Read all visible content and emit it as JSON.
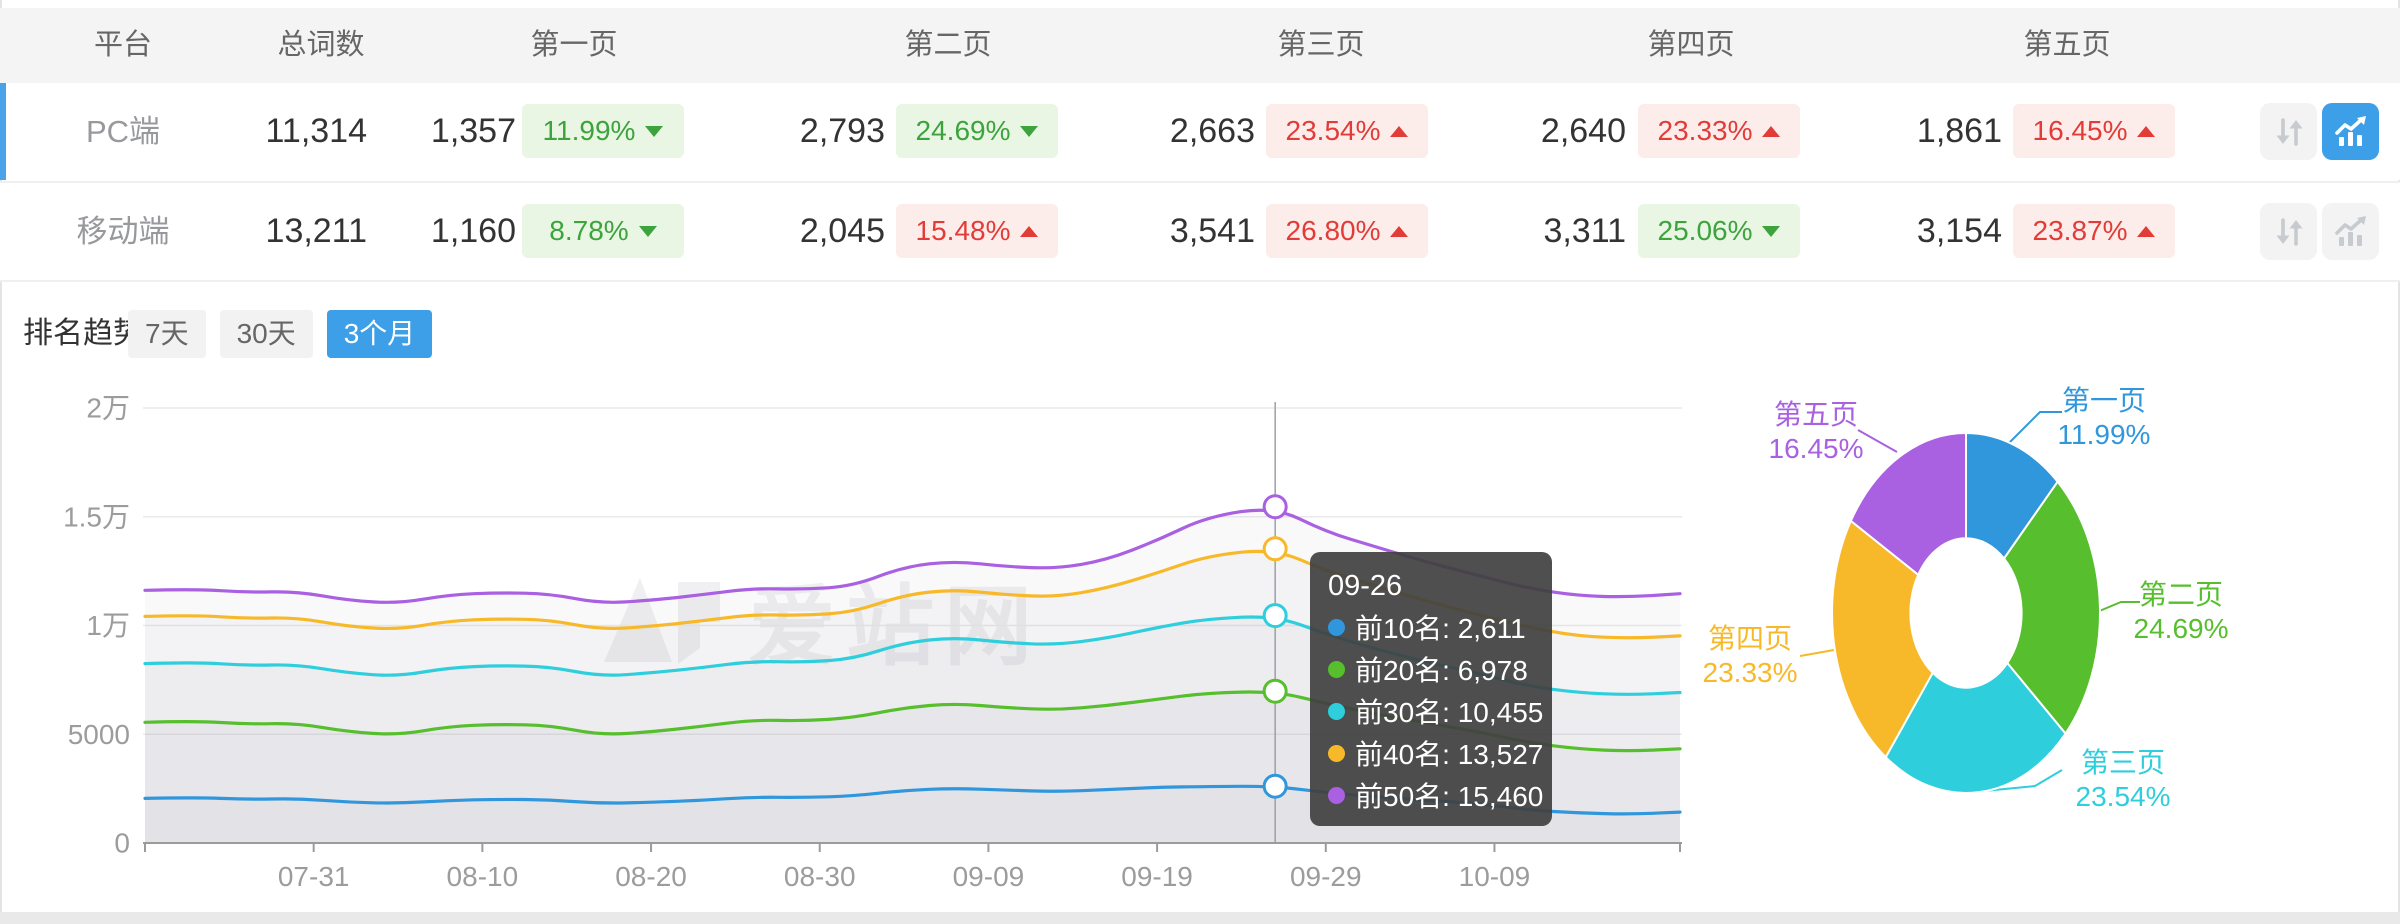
{
  "palette": [
    "#3097DC",
    "#57BE2D",
    "#2FCEDD",
    "#F7B929",
    "#A960E1"
  ],
  "colors": {
    "accent_blue": "#3D9FE8",
    "selected_row_bar": "#4AA3EA",
    "badge_up_text": "#E23C39",
    "badge_up_bg": "#FCECEA",
    "badge_down_text": "#3DA33D",
    "badge_down_bg": "#E9F6E3",
    "tooltip_bg": "rgba(64,64,64,0.92)"
  },
  "table": {
    "headers": [
      "平台",
      "总词数",
      "第一页",
      "第二页",
      "第三页",
      "第四页",
      "第五页"
    ],
    "rows": [
      {
        "platform": "PC端",
        "total": "11,314",
        "selected": true,
        "trend_chart_active": true,
        "pages": [
          {
            "count": "1,357",
            "pct": "11.99%",
            "dir": "down"
          },
          {
            "count": "2,793",
            "pct": "24.69%",
            "dir": "down"
          },
          {
            "count": "2,663",
            "pct": "23.54%",
            "dir": "up"
          },
          {
            "count": "2,640",
            "pct": "23.33%",
            "dir": "up"
          },
          {
            "count": "1,861",
            "pct": "16.45%",
            "dir": "up"
          }
        ]
      },
      {
        "platform": "移动端",
        "total": "13,211",
        "selected": false,
        "trend_chart_active": false,
        "pages": [
          {
            "count": "1,160",
            "pct": "8.78%",
            "dir": "down"
          },
          {
            "count": "2,045",
            "pct": "15.48%",
            "dir": "up"
          },
          {
            "count": "3,541",
            "pct": "26.80%",
            "dir": "up"
          },
          {
            "count": "3,311",
            "pct": "25.06%",
            "dir": "down"
          },
          {
            "count": "3,154",
            "pct": "23.87%",
            "dir": "up"
          }
        ]
      }
    ]
  },
  "trend_section": {
    "label": "排名趋势",
    "tabs": [
      {
        "label": "7天",
        "active": false
      },
      {
        "label": "30天",
        "active": false
      },
      {
        "label": "3个月",
        "active": true
      }
    ]
  },
  "watermark": "爱站网",
  "tooltip": {
    "title": "09-26",
    "rows": [
      {
        "name": "前10名",
        "value": "2,611"
      },
      {
        "name": "前20名",
        "value": "6,978"
      },
      {
        "name": "前30名",
        "value": "10,455"
      },
      {
        "name": "前40名",
        "value": "13,527"
      },
      {
        "name": "前50名",
        "value": "15,460"
      }
    ]
  },
  "chart_data": [
    {
      "type": "line",
      "title": "排名趋势 3个月",
      "x": [
        "07-21",
        "07-24",
        "07-27",
        "07-30",
        "08-02",
        "08-05",
        "08-08",
        "08-11",
        "08-14",
        "08-17",
        "08-20",
        "08-23",
        "08-26",
        "08-29",
        "09-01",
        "09-04",
        "09-07",
        "09-10",
        "09-13",
        "09-16",
        "09-19",
        "09-22",
        "09-26",
        "09-29",
        "10-02",
        "10-05",
        "10-08",
        "10-11",
        "10-14",
        "10-17",
        "10-20"
      ],
      "series": [
        {
          "name": "前10名",
          "values": [
            2050,
            2100,
            2000,
            2050,
            1880,
            1820,
            1960,
            2010,
            1990,
            1820,
            1870,
            1960,
            2110,
            2090,
            2160,
            2420,
            2520,
            2430,
            2360,
            2450,
            2560,
            2600,
            2611,
            2320,
            2120,
            1960,
            1820,
            1520,
            1380,
            1320,
            1420
          ]
        },
        {
          "name": "前20名",
          "values": [
            5550,
            5620,
            5460,
            5510,
            5120,
            4960,
            5360,
            5460,
            5410,
            4960,
            5110,
            5360,
            5660,
            5610,
            5760,
            6220,
            6420,
            6220,
            6120,
            6310,
            6610,
            6900,
            6978,
            6420,
            5920,
            5520,
            5120,
            4620,
            4320,
            4220,
            4330
          ]
        },
        {
          "name": "前30名",
          "values": [
            8250,
            8320,
            8160,
            8210,
            7820,
            7660,
            8060,
            8160,
            8110,
            7660,
            7820,
            8060,
            8360,
            8310,
            8460,
            9210,
            9460,
            9210,
            9110,
            9410,
            9910,
            10310,
            10455,
            9610,
            8910,
            8310,
            7810,
            7210,
            6910,
            6810,
            6920
          ]
        },
        {
          "name": "前40名",
          "values": [
            10420,
            10480,
            10320,
            10370,
            9960,
            9810,
            10210,
            10310,
            10260,
            9810,
            9960,
            10210,
            10510,
            10460,
            10610,
            11410,
            11660,
            11410,
            11310,
            11710,
            12410,
            13210,
            13527,
            12510,
            11810,
            11110,
            10510,
            9910,
            9510,
            9410,
            9520
          ]
        },
        {
          "name": "前50名",
          "values": [
            11620,
            11680,
            11520,
            11570,
            11160,
            11010,
            11410,
            11510,
            11460,
            11010,
            11160,
            11410,
            11710,
            11660,
            11810,
            12710,
            12960,
            12710,
            12610,
            13010,
            13910,
            15010,
            15460,
            14310,
            13610,
            12910,
            12310,
            11710,
            11360,
            11310,
            11460
          ]
        }
      ],
      "yticks": [
        {
          "v": 0,
          "label": "0"
        },
        {
          "v": 5000,
          "label": "5000"
        },
        {
          "v": 10000,
          "label": "1万"
        },
        {
          "v": 15000,
          "label": "1.5万"
        },
        {
          "v": 20000,
          "label": "2万"
        }
      ],
      "xticks": [
        "07-31",
        "08-10",
        "08-20",
        "08-30",
        "09-09",
        "09-19",
        "09-29",
        "10-09"
      ],
      "ylim": [
        0,
        20000
      ],
      "grid": true,
      "legend": "none",
      "highlight_x": "09-26"
    },
    {
      "type": "pie",
      "donut": true,
      "labels": [
        "第一页",
        "第二页",
        "第三页",
        "第四页",
        "第五页"
      ],
      "values": [
        11.99,
        24.69,
        23.54,
        23.33,
        16.45
      ],
      "pct_labels": [
        "11.99%",
        "24.69%",
        "23.54%",
        "23.33%",
        "16.45%"
      ]
    }
  ]
}
